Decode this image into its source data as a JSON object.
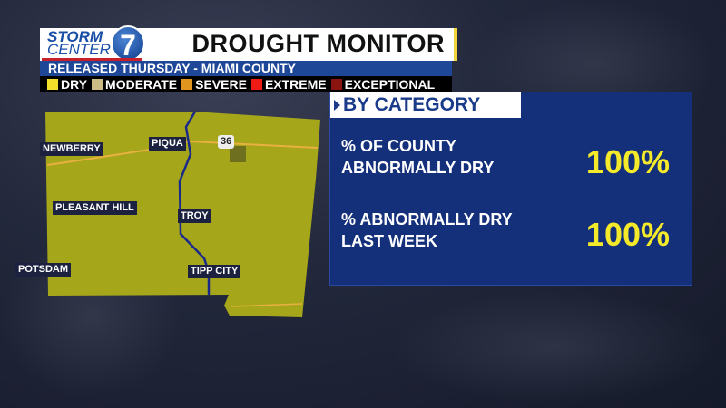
{
  "header": {
    "logo_text": [
      "STORM",
      "CENTER",
      "7"
    ],
    "title": "DROUGHT MONITOR",
    "subtitle": "RELEASED THURSDAY - MIAMI COUNTY"
  },
  "legend": [
    {
      "label": "DRY",
      "color": "#f2e02a"
    },
    {
      "label": "MODERATE",
      "color": "#cdbb86"
    },
    {
      "label": "SEVERE",
      "color": "#e0961e"
    },
    {
      "label": "EXTREME",
      "color": "#f01a14"
    },
    {
      "label": "EXCEPTIONAL",
      "color": "#8a1410"
    }
  ],
  "map": {
    "fill": "#a6a61a",
    "places": [
      "NEWBERRY",
      "PIQUA",
      "PLEASANT HILL",
      "TROY",
      "POTSDAM",
      "TIPP CITY"
    ],
    "route_shield": "36"
  },
  "panel": {
    "heading": "BY CATEGORY",
    "rows": [
      {
        "label_1": "% OF COUNTY",
        "label_2": "ABNORMALLY DRY",
        "value": "100%"
      },
      {
        "label_1": "% ABNORMALLY DRY",
        "label_2": "LAST WEEK",
        "value": "100%"
      }
    ]
  }
}
